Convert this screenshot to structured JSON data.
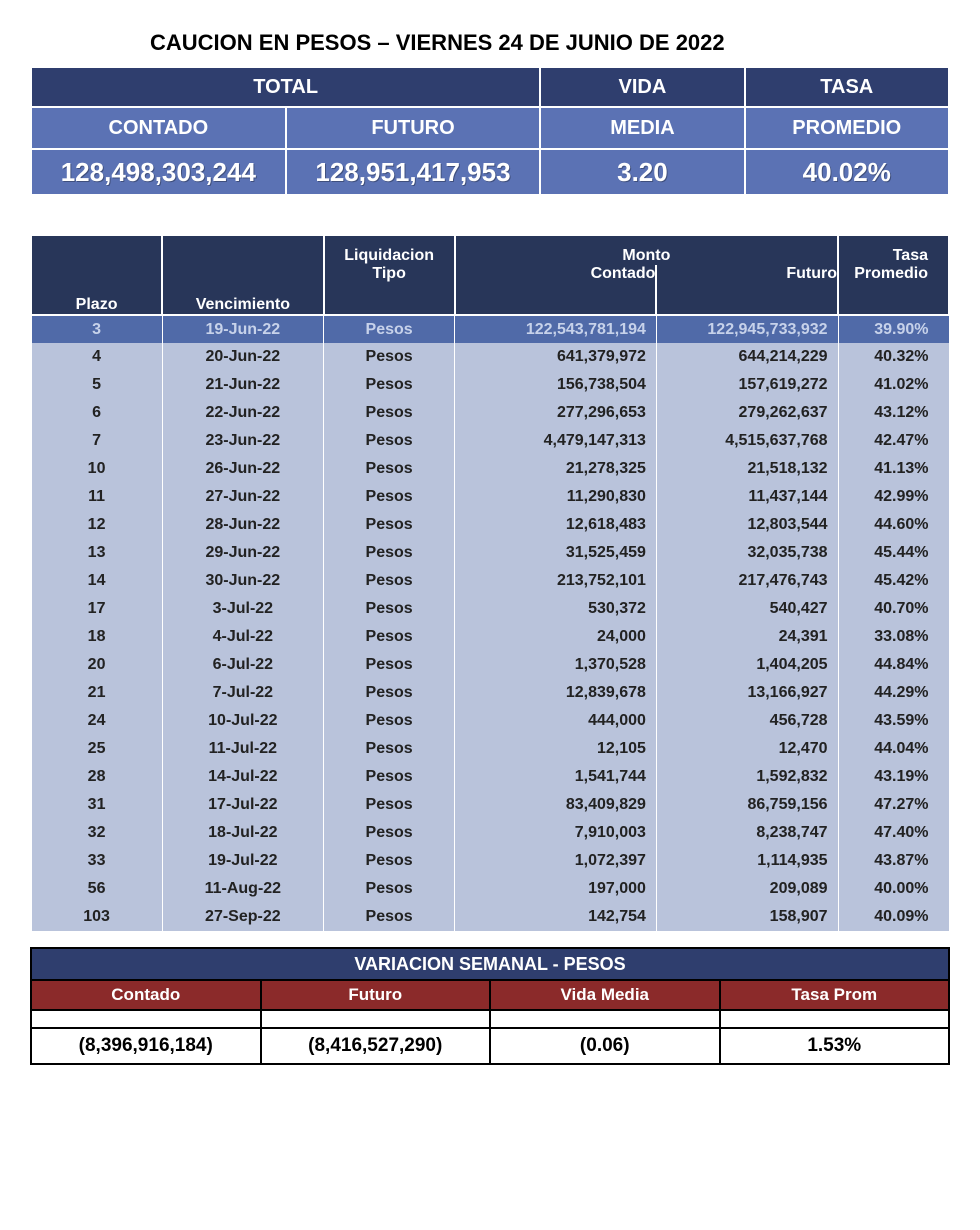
{
  "title": "CAUCION EN PESOS – VIERNES  24 DE JUNIO DE 2022",
  "summary": {
    "headers": {
      "total": "TOTAL",
      "vida": "VIDA",
      "tasa": "TASA",
      "contado": "CONTADO",
      "futuro": "FUTURO",
      "media": "MEDIA",
      "promedio": "PROMEDIO"
    },
    "values": {
      "contado": "128,498,303,244",
      "futuro": "128,951,417,953",
      "media": "3.20",
      "promedio": "40.02%"
    }
  },
  "detail": {
    "headers": {
      "plazo": "Plazo",
      "vencimiento": "Vencimiento",
      "liquidacion": "Liquidacion",
      "tipo": "Tipo",
      "monto": "Monto",
      "contado": "Contado",
      "futuro": "Futuro",
      "tasa": "Tasa",
      "promedio": "Promedio"
    },
    "rows": [
      {
        "plazo": "3",
        "venc": "19-Jun-22",
        "tipo": "Pesos",
        "contado": "122,543,781,194",
        "futuro": "122,945,733,932",
        "tasa": "39.90%",
        "hl": true
      },
      {
        "plazo": "4",
        "venc": "20-Jun-22",
        "tipo": "Pesos",
        "contado": "641,379,972",
        "futuro": "644,214,229",
        "tasa": "40.32%",
        "hl": false
      },
      {
        "plazo": "5",
        "venc": "21-Jun-22",
        "tipo": "Pesos",
        "contado": "156,738,504",
        "futuro": "157,619,272",
        "tasa": "41.02%",
        "hl": false
      },
      {
        "plazo": "6",
        "venc": "22-Jun-22",
        "tipo": "Pesos",
        "contado": "277,296,653",
        "futuro": "279,262,637",
        "tasa": "43.12%",
        "hl": false
      },
      {
        "plazo": "7",
        "venc": "23-Jun-22",
        "tipo": "Pesos",
        "contado": "4,479,147,313",
        "futuro": "4,515,637,768",
        "tasa": "42.47%",
        "hl": false
      },
      {
        "plazo": "10",
        "venc": "26-Jun-22",
        "tipo": "Pesos",
        "contado": "21,278,325",
        "futuro": "21,518,132",
        "tasa": "41.13%",
        "hl": false
      },
      {
        "plazo": "11",
        "venc": "27-Jun-22",
        "tipo": "Pesos",
        "contado": "11,290,830",
        "futuro": "11,437,144",
        "tasa": "42.99%",
        "hl": false
      },
      {
        "plazo": "12",
        "venc": "28-Jun-22",
        "tipo": "Pesos",
        "contado": "12,618,483",
        "futuro": "12,803,544",
        "tasa": "44.60%",
        "hl": false
      },
      {
        "plazo": "13",
        "venc": "29-Jun-22",
        "tipo": "Pesos",
        "contado": "31,525,459",
        "futuro": "32,035,738",
        "tasa": "45.44%",
        "hl": false
      },
      {
        "plazo": "14",
        "venc": "30-Jun-22",
        "tipo": "Pesos",
        "contado": "213,752,101",
        "futuro": "217,476,743",
        "tasa": "45.42%",
        "hl": false
      },
      {
        "plazo": "17",
        "venc": "3-Jul-22",
        "tipo": "Pesos",
        "contado": "530,372",
        "futuro": "540,427",
        "tasa": "40.70%",
        "hl": false
      },
      {
        "plazo": "18",
        "venc": "4-Jul-22",
        "tipo": "Pesos",
        "contado": "24,000",
        "futuro": "24,391",
        "tasa": "33.08%",
        "hl": false
      },
      {
        "plazo": "20",
        "venc": "6-Jul-22",
        "tipo": "Pesos",
        "contado": "1,370,528",
        "futuro": "1,404,205",
        "tasa": "44.84%",
        "hl": false
      },
      {
        "plazo": "21",
        "venc": "7-Jul-22",
        "tipo": "Pesos",
        "contado": "12,839,678",
        "futuro": "13,166,927",
        "tasa": "44.29%",
        "hl": false
      },
      {
        "plazo": "24",
        "venc": "10-Jul-22",
        "tipo": "Pesos",
        "contado": "444,000",
        "futuro": "456,728",
        "tasa": "43.59%",
        "hl": false
      },
      {
        "plazo": "25",
        "venc": "11-Jul-22",
        "tipo": "Pesos",
        "contado": "12,105",
        "futuro": "12,470",
        "tasa": "44.04%",
        "hl": false
      },
      {
        "plazo": "28",
        "venc": "14-Jul-22",
        "tipo": "Pesos",
        "contado": "1,541,744",
        "futuro": "1,592,832",
        "tasa": "43.19%",
        "hl": false
      },
      {
        "plazo": "31",
        "venc": "17-Jul-22",
        "tipo": "Pesos",
        "contado": "83,409,829",
        "futuro": "86,759,156",
        "tasa": "47.27%",
        "hl": false
      },
      {
        "plazo": "32",
        "venc": "18-Jul-22",
        "tipo": "Pesos",
        "contado": "7,910,003",
        "futuro": "8,238,747",
        "tasa": "47.40%",
        "hl": false
      },
      {
        "plazo": "33",
        "venc": "19-Jul-22",
        "tipo": "Pesos",
        "contado": "1,072,397",
        "futuro": "1,114,935",
        "tasa": "43.87%",
        "hl": false
      },
      {
        "plazo": "56",
        "venc": "11-Aug-22",
        "tipo": "Pesos",
        "contado": "197,000",
        "futuro": "209,089",
        "tasa": "40.00%",
        "hl": false
      },
      {
        "plazo": "103",
        "venc": "27-Sep-22",
        "tipo": "Pesos",
        "contado": "142,754",
        "futuro": "158,907",
        "tasa": "40.09%",
        "hl": false
      }
    ]
  },
  "variacion": {
    "title": "VARIACION SEMANAL - PESOS",
    "headers": {
      "contado": "Contado",
      "futuro": "Futuro",
      "vida_media": "Vida Media",
      "tasa_prom": "Tasa Prom"
    },
    "values": {
      "contado": "(8,396,916,184)",
      "futuro": "(8,416,527,290)",
      "vida_media": "(0.06)",
      "tasa_prom": "1.53%"
    }
  },
  "colors": {
    "dark_navy": "#2f3e6e",
    "header_navy": "#283659",
    "mid_blue": "#5b72b4",
    "highlight_row": "#506aa8",
    "light_row": "#b9c3db",
    "maroon": "#8b2a2a"
  }
}
